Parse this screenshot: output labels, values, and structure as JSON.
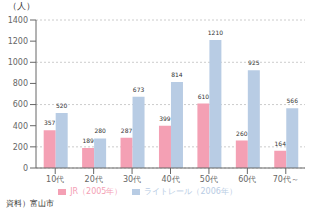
{
  "chart_data": {
    "type": "bar",
    "y_label": "（人）",
    "source": "資料）富山市",
    "categories": [
      "10代",
      "20代",
      "30代",
      "40代",
      "50代",
      "60代",
      "70代～"
    ],
    "series": [
      {
        "name": "JR（2005年）",
        "color": "#f4a0b4",
        "values": [
          357,
          189,
          287,
          399,
          610,
          260,
          164
        ]
      },
      {
        "name": "ライトレール（2006年）",
        "color": "#b8cce4",
        "values": [
          520,
          280,
          673,
          814,
          1210,
          925,
          566
        ]
      }
    ],
    "ylim": [
      0,
      1400
    ],
    "yticks": [
      0,
      200,
      400,
      600,
      800,
      1000,
      1200,
      1400
    ],
    "grid": true,
    "legend": "bottom",
    "data_labels": true
  }
}
